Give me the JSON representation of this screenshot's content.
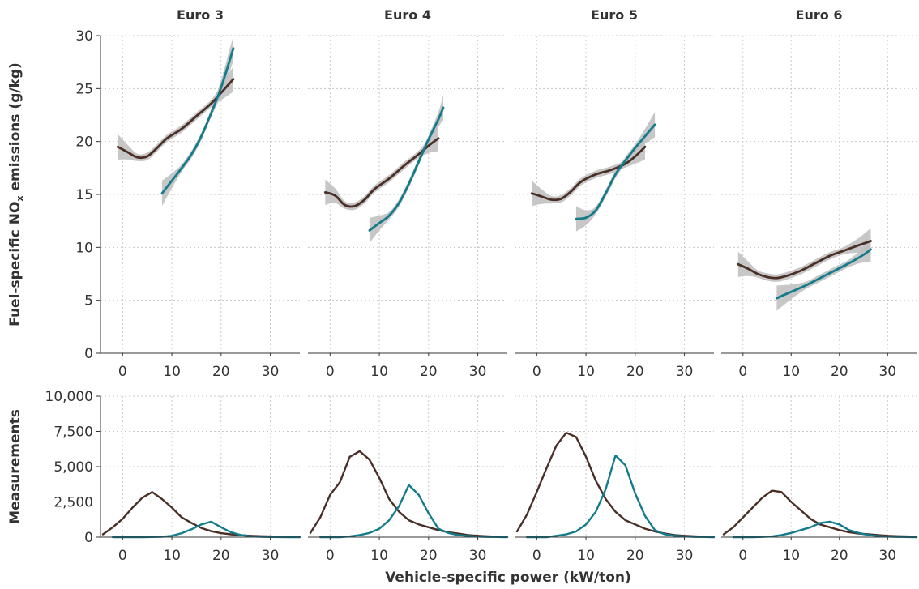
{
  "chart_data": {
    "type": "line",
    "xlabel": "Vehicle-specific power (kW/ton)",
    "ylabel_top": "Fuel-specific NO",
    "ylabel_top_sub": "x",
    "ylabel_top_suffix": " emissions (g/kg)",
    "ylabel_bottom": "Measurements",
    "top_ylim": [
      0,
      30
    ],
    "top_yticks": [
      "0",
      "5",
      "10",
      "15",
      "20",
      "25",
      "30"
    ],
    "bottom_ylim": [
      0,
      10000
    ],
    "bottom_yticks": [
      "0",
      "2,500",
      "5,000",
      "7,500",
      "10,000"
    ],
    "top_xticks": [
      "0",
      "10",
      "20",
      "30"
    ],
    "bottom_xticks": [
      "0",
      "10",
      "20",
      "30"
    ],
    "grid": true,
    "colors": {
      "brown": "#4a2f26",
      "teal": "#137b8c",
      "band": "#bdbdbd"
    },
    "panels": [
      {
        "title": "Euro 3",
        "emissions": {
          "brown": {
            "x": [
              -1,
              1,
              3,
              5,
              7,
              9,
              12,
              15,
              18,
              20,
              22.5
            ],
            "y": [
              19.5,
              19.0,
              18.5,
              18.6,
              19.4,
              20.3,
              21.2,
              22.4,
              23.6,
              24.6,
              25.9
            ]
          },
          "teal": {
            "x": [
              8,
              10,
              12,
              14,
              16,
              18,
              20,
              22.5
            ],
            "y": [
              15.1,
              16.3,
              17.5,
              18.8,
              20.5,
              22.7,
              25.1,
              28.8
            ]
          }
        },
        "measurements": {
          "brown": {
            "x": [
              -4,
              -2,
              0,
              2,
              4,
              6,
              8,
              10,
              12,
              14,
              16,
              18,
              20,
              22,
              24,
              26,
              28,
              30,
              32,
              34,
              36
            ],
            "y": [
              200,
              700,
              1300,
              2100,
              2800,
              3200,
              2700,
              2100,
              1400,
              1000,
              650,
              420,
              280,
              200,
              140,
              100,
              70,
              50,
              30,
              20,
              10
            ]
          },
          "teal": {
            "x": [
              -2,
              0,
              2,
              4,
              6,
              8,
              10,
              12,
              14,
              16,
              18,
              20,
              22,
              24,
              26,
              28,
              30,
              32,
              34,
              36
            ],
            "y": [
              0,
              0,
              0,
              0,
              10,
              30,
              90,
              280,
              560,
              900,
              1100,
              700,
              350,
              150,
              60,
              30,
              10,
              5,
              0,
              0
            ]
          }
        }
      },
      {
        "title": "Euro 4",
        "emissions": {
          "brown": {
            "x": [
              -1,
              1,
              3,
              5,
              7,
              9,
              12,
              15,
              18,
              20,
              22
            ],
            "y": [
              15.2,
              14.9,
              14.0,
              13.9,
              14.5,
              15.5,
              16.5,
              17.7,
              18.8,
              19.6,
              20.3
            ]
          },
          "teal": {
            "x": [
              8,
              10,
              12,
              14,
              16,
              18,
              20,
              22,
              23
            ],
            "y": [
              11.6,
              12.3,
              13.0,
              14.2,
              16.0,
              18.1,
              20.2,
              22.1,
              23.2
            ]
          }
        },
        "measurements": {
          "brown": {
            "x": [
              -4,
              -2,
              0,
              2,
              4,
              6,
              8,
              10,
              12,
              14,
              16,
              18,
              20,
              22,
              24,
              26,
              28,
              30,
              32,
              34,
              36
            ],
            "y": [
              300,
              1400,
              3000,
              3900,
              5700,
              6100,
              5500,
              4200,
              2700,
              1800,
              1200,
              900,
              700,
              500,
              350,
              250,
              150,
              100,
              60,
              30,
              20
            ]
          },
          "teal": {
            "x": [
              -2,
              0,
              2,
              4,
              6,
              8,
              10,
              12,
              14,
              16,
              18,
              20,
              22,
              24,
              26,
              28,
              30,
              32,
              34,
              36
            ],
            "y": [
              0,
              0,
              0,
              50,
              150,
              300,
              600,
              1200,
              2200,
              3700,
              3000,
              1700,
              600,
              300,
              150,
              80,
              40,
              20,
              10,
              0
            ]
          }
        }
      },
      {
        "title": "Euro 5",
        "emissions": {
          "brown": {
            "x": [
              -1,
              1,
              3,
              5,
              7,
              9,
              12,
              15,
              18,
              20,
              22
            ],
            "y": [
              15.1,
              14.8,
              14.5,
              14.6,
              15.3,
              16.2,
              16.9,
              17.3,
              17.9,
              18.6,
              19.5
            ]
          },
          "teal": {
            "x": [
              8,
              10,
              12,
              14,
              16,
              18,
              20,
              22,
              24
            ],
            "y": [
              12.7,
              12.8,
              13.5,
              15.1,
              16.9,
              18.2,
              19.4,
              20.5,
              21.6
            ]
          }
        },
        "measurements": {
          "brown": {
            "x": [
              -4,
              -2,
              0,
              2,
              4,
              6,
              8,
              10,
              12,
              14,
              16,
              18,
              20,
              22,
              24,
              26,
              28,
              30,
              32,
              34,
              36
            ],
            "y": [
              400,
              1600,
              3200,
              4900,
              6500,
              7400,
              7100,
              5700,
              4000,
              2700,
              1800,
              1200,
              900,
              600,
              400,
              250,
              150,
              100,
              60,
              30,
              20
            ]
          },
          "teal": {
            "x": [
              -2,
              0,
              2,
              4,
              6,
              8,
              10,
              12,
              14,
              16,
              18,
              20,
              22,
              24,
              26,
              28,
              30,
              32,
              34,
              36
            ],
            "y": [
              0,
              0,
              0,
              100,
              200,
              400,
              900,
              1800,
              3400,
              5800,
              5100,
              3100,
              1500,
              500,
              200,
              100,
              50,
              20,
              10,
              0
            ]
          }
        }
      },
      {
        "title": "Euro 6",
        "emissions": {
          "brown": {
            "x": [
              -1,
              1,
              3,
              5,
              7,
              9,
              12,
              15,
              18,
              21,
              24,
              26.5
            ],
            "y": [
              8.4,
              8.0,
              7.5,
              7.2,
              7.1,
              7.3,
              7.8,
              8.5,
              9.2,
              9.7,
              10.2,
              10.6
            ]
          },
          "teal": {
            "x": [
              7,
              10,
              13,
              16,
              19,
              22,
              25,
              26.5
            ],
            "y": [
              5.2,
              5.8,
              6.4,
              7.1,
              7.8,
              8.5,
              9.3,
              9.8
            ]
          }
        },
        "measurements": {
          "brown": {
            "x": [
              -4,
              -2,
              0,
              2,
              4,
              6,
              8,
              10,
              12,
              14,
              16,
              18,
              20,
              22,
              24,
              26,
              28,
              30,
              32,
              34,
              36
            ],
            "y": [
              200,
              700,
              1400,
              2100,
              2800,
              3300,
              3200,
              2500,
              1900,
              1300,
              900,
              700,
              500,
              350,
              250,
              200,
              150,
              100,
              70,
              50,
              30
            ]
          },
          "teal": {
            "x": [
              -2,
              0,
              2,
              4,
              6,
              8,
              10,
              12,
              14,
              16,
              18,
              20,
              22,
              24,
              26,
              28,
              30,
              32,
              34,
              36
            ],
            "y": [
              0,
              0,
              0,
              20,
              50,
              150,
              300,
              500,
              700,
              1000,
              1100,
              900,
              500,
              300,
              150,
              80,
              40,
              20,
              10,
              0
            ]
          }
        }
      }
    ]
  }
}
